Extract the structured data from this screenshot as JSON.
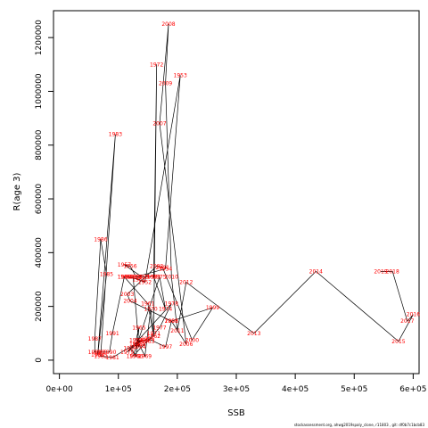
{
  "chart_data": {
    "type": "line",
    "xlabel": "SSB",
    "ylabel": "R(age 3)",
    "xlim": [
      -10000,
      610000
    ],
    "ylim": [
      -50000,
      1300000
    ],
    "x_ticks": [
      0,
      100000,
      200000,
      300000,
      400000,
      500000,
      600000
    ],
    "x_tick_labels": [
      "0e+00",
      "1e+05",
      "2e+05",
      "3e+05",
      "4e+05",
      "5e+05",
      "6e+05"
    ],
    "y_ticks": [
      0,
      200000,
      400000,
      600000,
      800000,
      1000000,
      1200000
    ],
    "y_tick_labels": [
      "0",
      "200000",
      "400000",
      "600000",
      "800000",
      "1000000",
      "1200000"
    ],
    "footnote": "stockassessment.org, ahwg2019spaly_clone, r11803 , git: df0b7c1bcb83",
    "points": [
      {
        "year": "1950",
        "x": 115000,
        "y": 310000
      },
      {
        "year": "1951",
        "x": 135000,
        "y": 300000
      },
      {
        "year": "1952",
        "x": 145000,
        "y": 290000
      },
      {
        "year": "1953",
        "x": 205000,
        "y": 1060000
      },
      {
        "year": "1954",
        "x": 180000,
        "y": 340000
      },
      {
        "year": "1955",
        "x": 130000,
        "y": 310000
      },
      {
        "year": "1956",
        "x": 120000,
        "y": 350000
      },
      {
        "year": "1957",
        "x": 110000,
        "y": 355000
      },
      {
        "year": "1958",
        "x": 140000,
        "y": 310000
      },
      {
        "year": "1959",
        "x": 155000,
        "y": 310000
      },
      {
        "year": "1960",
        "x": 110000,
        "y": 310000
      },
      {
        "year": "1961",
        "x": 150000,
        "y": 210000
      },
      {
        "year": "1962",
        "x": 160000,
        "y": 90000
      },
      {
        "year": "1963",
        "x": 150000,
        "y": 70000
      },
      {
        "year": "1964",
        "x": 130000,
        "y": 75000
      },
      {
        "year": "1965",
        "x": 135000,
        "y": 120000
      },
      {
        "year": "1966",
        "x": 130000,
        "y": 15000
      },
      {
        "year": "1967",
        "x": 120000,
        "y": 45000
      },
      {
        "year": "1968",
        "x": 135000,
        "y": 60000
      },
      {
        "year": "1969",
        "x": 145000,
        "y": 15000
      },
      {
        "year": "1970",
        "x": 155000,
        "y": 190000
      },
      {
        "year": "1971",
        "x": 160000,
        "y": 100000
      },
      {
        "year": "1972",
        "x": 165000,
        "y": 1100000
      },
      {
        "year": "1973",
        "x": 160000,
        "y": 310000
      },
      {
        "year": "1974",
        "x": 180000,
        "y": 190000
      },
      {
        "year": "1975",
        "x": 170000,
        "y": 310000
      },
      {
        "year": "1976",
        "x": 125000,
        "y": 15000
      },
      {
        "year": "1977",
        "x": 170000,
        "y": 120000
      },
      {
        "year": "1978",
        "x": 190000,
        "y": 210000
      },
      {
        "year": "1979",
        "x": 115000,
        "y": 30000
      },
      {
        "year": "1980",
        "x": 140000,
        "y": 75000
      },
      {
        "year": "1981",
        "x": 90000,
        "y": 10000
      },
      {
        "year": "1982",
        "x": 70000,
        "y": 15000
      },
      {
        "year": "1983",
        "x": 95000,
        "y": 840000
      },
      {
        "year": "1984",
        "x": 65000,
        "y": 20000
      },
      {
        "year": "1985",
        "x": 80000,
        "y": 320000
      },
      {
        "year": "1986",
        "x": 70000,
        "y": 450000
      },
      {
        "year": "1987",
        "x": 60000,
        "y": 80000
      },
      {
        "year": "1988",
        "x": 60000,
        "y": 30000
      },
      {
        "year": "1989",
        "x": 70000,
        "y": 30000
      },
      {
        "year": "1990",
        "x": 85000,
        "y": 30000
      },
      {
        "year": "1991",
        "x": 90000,
        "y": 100000
      },
      {
        "year": "1992",
        "x": 110000,
        "y": 310000
      },
      {
        "year": "1993",
        "x": 125000,
        "y": 310000
      },
      {
        "year": "1994",
        "x": 135000,
        "y": 50000
      },
      {
        "year": "1995",
        "x": 130000,
        "y": 60000
      },
      {
        "year": "1996",
        "x": 150000,
        "y": 80000
      },
      {
        "year": "1997",
        "x": 180000,
        "y": 50000
      },
      {
        "year": "1998",
        "x": 190000,
        "y": 145000
      },
      {
        "year": "1999",
        "x": 260000,
        "y": 195000
      },
      {
        "year": "2000",
        "x": 225000,
        "y": 75000
      },
      {
        "year": "2001",
        "x": 175000,
        "y": 345000
      },
      {
        "year": "2002",
        "x": 165000,
        "y": 350000
      },
      {
        "year": "2003",
        "x": 115000,
        "y": 245000
      },
      {
        "year": "2004",
        "x": 120000,
        "y": 220000
      },
      {
        "year": "2005",
        "x": 190000,
        "y": 145000
      },
      {
        "year": "2006",
        "x": 215000,
        "y": 60000
      },
      {
        "year": "2007",
        "x": 170000,
        "y": 880000
      },
      {
        "year": "2008",
        "x": 185000,
        "y": 1250000
      },
      {
        "year": "2009",
        "x": 180000,
        "y": 1030000
      },
      {
        "year": "2010",
        "x": 190000,
        "y": 310000
      },
      {
        "year": "2011",
        "x": 200000,
        "y": 110000
      },
      {
        "year": "2012",
        "x": 215000,
        "y": 290000
      },
      {
        "year": "2013",
        "x": 330000,
        "y": 100000
      },
      {
        "year": "2014",
        "x": 435000,
        "y": 330000
      },
      {
        "year": "2015",
        "x": 575000,
        "y": 70000
      },
      {
        "year": "2016",
        "x": 600000,
        "y": 170000
      },
      {
        "year": "2017",
        "x": 590000,
        "y": 145000
      },
      {
        "year": "2018",
        "x": 565000,
        "y": 330000
      },
      {
        "year": "2019",
        "x": 545000,
        "y": 330000
      }
    ]
  }
}
